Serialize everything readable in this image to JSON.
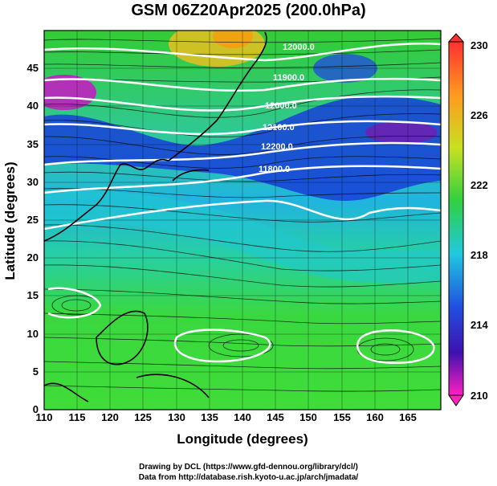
{
  "title": "GSM 06Z20Apr2025 (200.0hPa)",
  "map": {
    "xlabel": "Longitude (degrees)",
    "ylabel": "Latitude (degrees)",
    "lon_range": [
      110,
      170
    ],
    "lat_range": [
      0,
      50
    ],
    "lon_ticks": [
      "110",
      "115",
      "120",
      "125",
      "130",
      "135",
      "140",
      "145",
      "150",
      "155",
      "160",
      "165"
    ],
    "lat_ticks": [
      "0",
      "5",
      "10",
      "15",
      "20",
      "25",
      "30",
      "35",
      "40",
      "45"
    ],
    "contour_labels": [
      "12000.0",
      "11900.0",
      "12000.0",
      "12100.0",
      "12200.0",
      "11800.0"
    ]
  },
  "colorbar": {
    "ticks": [
      "230",
      "226",
      "222",
      "218",
      "214",
      "210"
    ],
    "min": 210,
    "max": 230
  },
  "credits": {
    "line1": "Drawing by DCL (https://www.gfd-dennou.org/library/dcl/)",
    "line2": "Data from http://database.rish.kyoto-u.ac.jp/arch/jmadata/"
  }
}
